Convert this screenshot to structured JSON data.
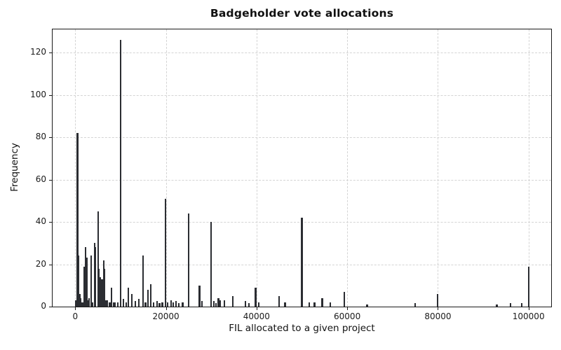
{
  "chart_data": {
    "type": "bar",
    "subtype": "histogram",
    "title": "Badgeholder vote allocations",
    "xlabel": "FIL allocated to a given project",
    "ylabel": "Frequency",
    "xlim": [
      -5000,
      105000
    ],
    "ylim": [
      0,
      131
    ],
    "x_ticks": [
      0,
      20000,
      40000,
      60000,
      80000,
      100000
    ],
    "x_tick_labels": [
      "0",
      "20000",
      "40000",
      "60000",
      "80000",
      "100000"
    ],
    "y_ticks": [
      0,
      20,
      40,
      60,
      80,
      100,
      120
    ],
    "y_tick_labels": [
      "0",
      "20",
      "40",
      "60",
      "80",
      "100",
      "120"
    ],
    "grid": true,
    "grid_style": "dashed",
    "legend": null,
    "bar_color": "#2b2d32",
    "grid_color": "#d4d4d4",
    "spine_color": "#1a1a1a",
    "bars_x_heights": [
      [
        100,
        3
      ],
      [
        250,
        2
      ],
      [
        500,
        82
      ],
      [
        750,
        24
      ],
      [
        1000,
        6
      ],
      [
        1250,
        4
      ],
      [
        1500,
        2
      ],
      [
        1750,
        2
      ],
      [
        2000,
        19
      ],
      [
        2250,
        28
      ],
      [
        2500,
        23
      ],
      [
        2750,
        3
      ],
      [
        3000,
        4
      ],
      [
        3500,
        24
      ],
      [
        3750,
        2
      ],
      [
        4250,
        30
      ],
      [
        4500,
        28
      ],
      [
        5000,
        45
      ],
      [
        5250,
        18
      ],
      [
        5500,
        14
      ],
      [
        5750,
        13
      ],
      [
        6000,
        13
      ],
      [
        6250,
        22
      ],
      [
        6500,
        18
      ],
      [
        6750,
        3
      ],
      [
        7000,
        3
      ],
      [
        7600,
        2
      ],
      [
        8000,
        9
      ],
      [
        8400,
        2
      ],
      [
        8800,
        2
      ],
      [
        9400,
        2
      ],
      [
        10000,
        126
      ],
      [
        10600,
        3.5
      ],
      [
        11200,
        2
      ],
      [
        11750,
        9
      ],
      [
        12500,
        6
      ],
      [
        13250,
        2.5
      ],
      [
        14000,
        3.5
      ],
      [
        15000,
        24
      ],
      [
        15500,
        2
      ],
      [
        16000,
        8
      ],
      [
        16700,
        10.5
      ],
      [
        17300,
        2
      ],
      [
        18000,
        2.5
      ],
      [
        18600,
        1.5
      ],
      [
        19200,
        2
      ],
      [
        19900,
        51
      ],
      [
        20400,
        2
      ],
      [
        21100,
        3
      ],
      [
        21600,
        2
      ],
      [
        22200,
        2.5
      ],
      [
        22900,
        1.5
      ],
      [
        23700,
        2
      ],
      [
        25000,
        44
      ],
      [
        27400,
        10
      ],
      [
        27900,
        2.5
      ],
      [
        30000,
        40
      ],
      [
        30600,
        2.5
      ],
      [
        31000,
        1.5
      ],
      [
        31600,
        4
      ],
      [
        32000,
        3
      ],
      [
        32900,
        3
      ],
      [
        34800,
        5
      ],
      [
        37500,
        2.5
      ],
      [
        38300,
        1.5
      ],
      [
        39800,
        9
      ],
      [
        40500,
        2
      ],
      [
        45000,
        5
      ],
      [
        46300,
        2
      ],
      [
        50000,
        42
      ],
      [
        51600,
        2
      ],
      [
        52800,
        2
      ],
      [
        54500,
        4
      ],
      [
        56300,
        2
      ],
      [
        59300,
        7
      ],
      [
        64400,
        1
      ],
      [
        75000,
        1.5
      ],
      [
        80000,
        6
      ],
      [
        93000,
        1
      ],
      [
        96000,
        1.5
      ],
      [
        98500,
        1.5
      ],
      [
        100000,
        19
      ]
    ]
  }
}
